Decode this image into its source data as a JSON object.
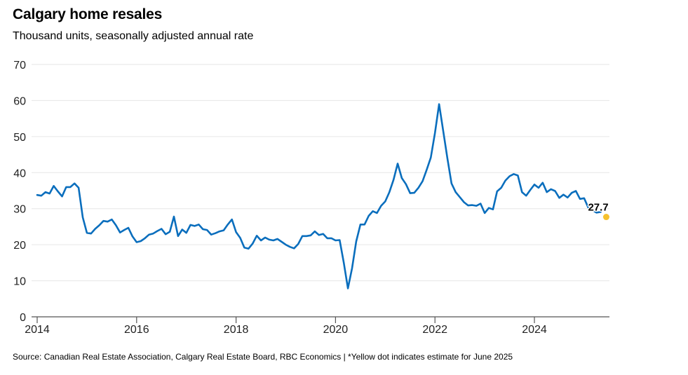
{
  "title": "Calgary home resales",
  "subtitle": "Thousand units, seasonally adjusted annual rate",
  "source": "Source: Canadian Real Estate Association, Calgary Real Estate Board, RBC Economics | *Yellow dot indicates estimate for June 2025",
  "chart_data": {
    "type": "line",
    "title": "Calgary home resales",
    "subtitle": "Thousand units, seasonally adjusted annual rate",
    "xlabel": "",
    "ylabel": "Thousand units",
    "ylim": [
      0,
      70
    ],
    "yticks": [
      0,
      10,
      20,
      30,
      40,
      50,
      60,
      70
    ],
    "xlim": [
      "2014-01",
      "2025-06"
    ],
    "xticks": [
      "2014",
      "2016",
      "2018",
      "2020",
      "2022",
      "2024"
    ],
    "grid": "horizontal",
    "legend": "none",
    "colors": {
      "line": "#0A6EBD",
      "estimate": "#F6C12E",
      "grid": "#E6E6E6",
      "axis": "#555555"
    },
    "series": [
      {
        "name": "Calgary home resales",
        "start": "2014-01",
        "frequency": "monthly",
        "values": [
          33.8,
          33.6,
          34.6,
          34.2,
          36.3,
          34.8,
          33.4,
          36.0,
          36.0,
          37.0,
          35.8,
          27.6,
          23.3,
          23.1,
          24.4,
          25.4,
          26.6,
          26.4,
          27.0,
          25.4,
          23.4,
          24.1,
          24.7,
          22.3,
          20.7,
          21.0,
          21.8,
          22.8,
          23.1,
          23.8,
          24.4,
          22.9,
          23.6,
          27.8,
          22.4,
          24.2,
          23.3,
          25.5,
          25.2,
          25.6,
          24.3,
          24.1,
          22.8,
          23.2,
          23.7,
          24.0,
          25.6,
          27.0,
          23.5,
          21.9,
          19.2,
          18.9,
          20.3,
          22.5,
          21.2,
          22.0,
          21.4,
          21.2,
          21.6,
          20.8,
          20.0,
          19.4,
          19.0,
          20.2,
          22.4,
          22.4,
          22.6,
          23.7,
          22.7,
          23.0,
          21.8,
          21.8,
          21.2,
          21.3,
          15.0,
          7.9,
          13.5,
          20.9,
          25.6,
          25.6,
          28.0,
          29.3,
          28.8,
          30.8,
          32.0,
          34.6,
          38.0,
          42.5,
          38.5,
          36.8,
          34.3,
          34.4,
          35.8,
          37.6,
          40.8,
          44.2,
          51.0,
          59.0,
          51.5,
          44.0,
          37.0,
          34.6,
          33.2,
          31.8,
          30.9,
          31.0,
          30.8,
          31.4,
          28.8,
          30.2,
          29.8,
          34.8,
          35.8,
          37.8,
          39.0,
          39.6,
          39.2,
          34.6,
          33.6,
          35.2,
          36.7,
          35.8,
          37.2,
          34.6,
          35.4,
          34.9,
          33.0,
          33.9,
          33.1,
          34.4,
          34.9,
          32.7,
          32.9,
          30.3,
          29.6,
          28.9,
          29.1
        ]
      }
    ],
    "estimate": {
      "date": "2025-06",
      "value": 27.7,
      "label": "27.7",
      "note": "Yellow dot indicates estimate for June 2025"
    }
  }
}
